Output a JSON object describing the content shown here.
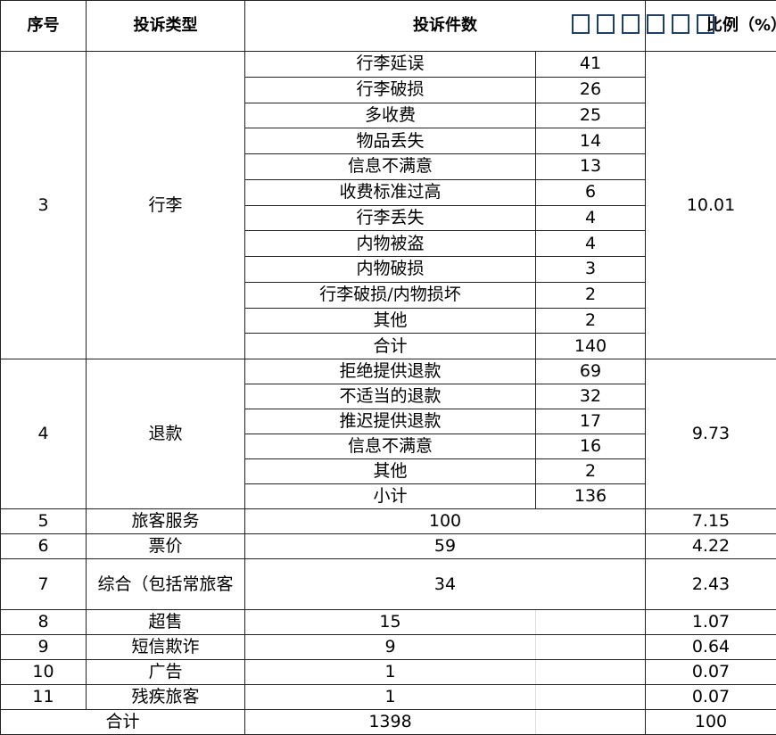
{
  "header": {
    "col_no": "序号",
    "col_type": "投诉类型",
    "col_count": "投诉件数",
    "col_ratio": "比例（%）",
    "missing_glyph_boxes": "□□□□□□"
  },
  "groups": [
    {
      "no": "3",
      "type": "行李",
      "ratio": "10.01",
      "items": [
        {
          "label": "行李延误",
          "count": "41"
        },
        {
          "label": "行李破损",
          "count": "26"
        },
        {
          "label": "多收费",
          "count": "25"
        },
        {
          "label": "物品丢失",
          "count": "14"
        },
        {
          "label": "信息不满意",
          "count": "13"
        },
        {
          "label": "收费标准过高",
          "count": "6"
        },
        {
          "label": "行李丢失",
          "count": "4"
        },
        {
          "label": "内物被盗",
          "count": "4"
        },
        {
          "label": "内物破损",
          "count": "3"
        },
        {
          "label": "行李破损/内物损坏",
          "count": "2"
        },
        {
          "label": "其他",
          "count": "2"
        },
        {
          "label": "合计",
          "count": "140"
        }
      ]
    },
    {
      "no": "4",
      "type": "退款",
      "ratio": "9.73",
      "items": [
        {
          "label": "拒绝提供退款",
          "count": "69"
        },
        {
          "label": "不适当的退款",
          "count": "32"
        },
        {
          "label": "推迟提供退款",
          "count": "17"
        },
        {
          "label": "信息不满意",
          "count": "16"
        },
        {
          "label": "其他",
          "count": "2"
        },
        {
          "label": "小计",
          "count": "136"
        }
      ]
    }
  ],
  "wide_rows": [
    {
      "no": "5",
      "type": "旅客服务",
      "count": "100",
      "ratio": "7.15"
    },
    {
      "no": "6",
      "type": "票价",
      "count": "59",
      "ratio": "4.22"
    },
    {
      "no": "7",
      "type": "综合（包括常旅客",
      "count": "34",
      "ratio": "2.43"
    }
  ],
  "split_rows": [
    {
      "no": "8",
      "type": "超售",
      "count": "15",
      "ratio": "1.07"
    },
    {
      "no": "9",
      "type": "短信欺诈",
      "count": "9",
      "ratio": "0.64"
    },
    {
      "no": "10",
      "type": "广告",
      "count": "1",
      "ratio": "0.07"
    },
    {
      "no": "11",
      "type": "残疾旅客",
      "count": "1",
      "ratio": "0.07"
    }
  ],
  "total": {
    "label": "合计",
    "count": "1398",
    "ratio": "100"
  }
}
